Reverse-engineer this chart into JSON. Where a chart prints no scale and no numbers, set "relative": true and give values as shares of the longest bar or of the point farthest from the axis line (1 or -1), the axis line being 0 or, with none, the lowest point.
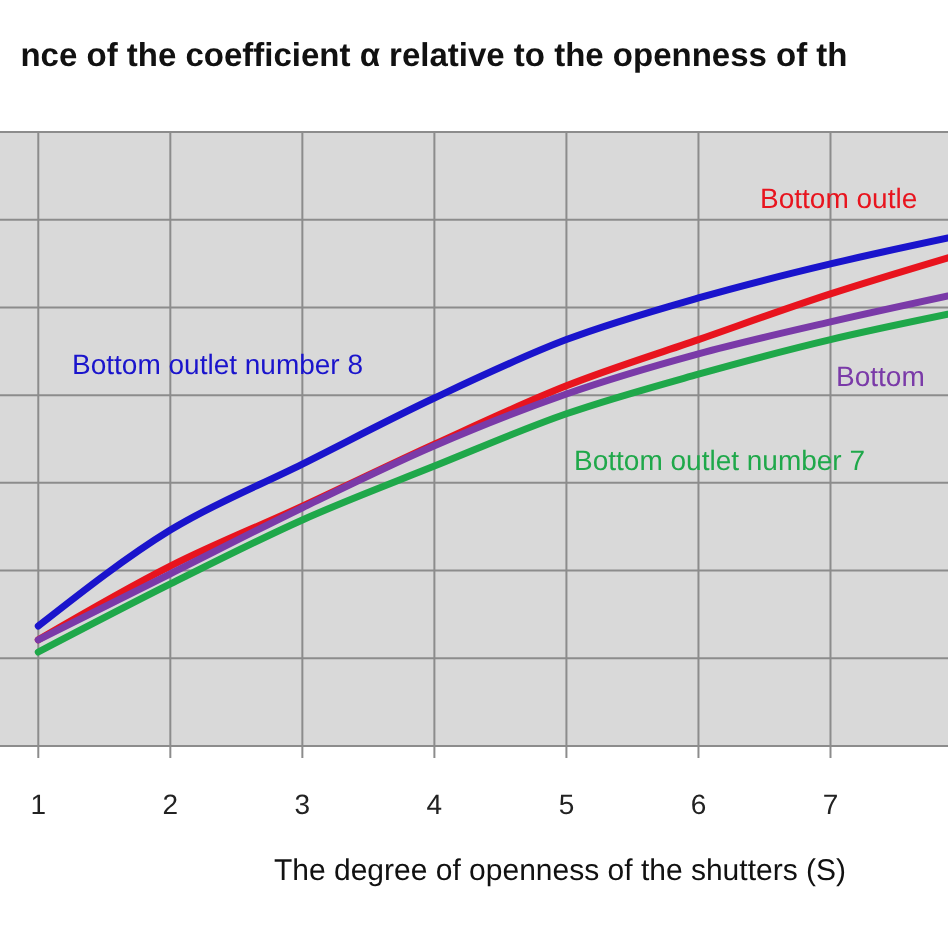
{
  "chart_data": {
    "type": "line",
    "title": "nce of the coefficient α relative to the openness of th",
    "xlabel": "The degree of openness of the shutters (S)",
    "relative": true,
    "xlim": [
      0.71,
      7.89
    ],
    "xticks": [
      1,
      2,
      3,
      4,
      5,
      6,
      7
    ],
    "x": [
      1,
      2,
      3,
      4,
      5,
      6,
      7,
      7.89
    ],
    "grid": true,
    "legend": false,
    "line_style": "solid",
    "series": [
      {
        "name": "Bottom outlet number 8",
        "color": "#1a14cc",
        "values": [
          0.236,
          0.425,
          0.555,
          0.685,
          0.8,
          0.882,
          0.949,
          1
        ]
      },
      {
        "name": "Bottom outle",
        "color": "#e8141e",
        "values": [
          0.209,
          0.354,
          0.472,
          0.594,
          0.709,
          0.8,
          0.89,
          0.961
        ]
      },
      {
        "name": "Bottom",
        "color": "#7a3aa8",
        "values": [
          0.209,
          0.339,
          0.469,
          0.591,
          0.693,
          0.772,
          0.835,
          0.886
        ]
      },
      {
        "name": "Bottom outlet number 7",
        "color": "#1fa84a",
        "values": [
          0.185,
          0.319,
          0.445,
          0.551,
          0.654,
          0.732,
          0.8,
          0.85
        ]
      }
    ]
  }
}
